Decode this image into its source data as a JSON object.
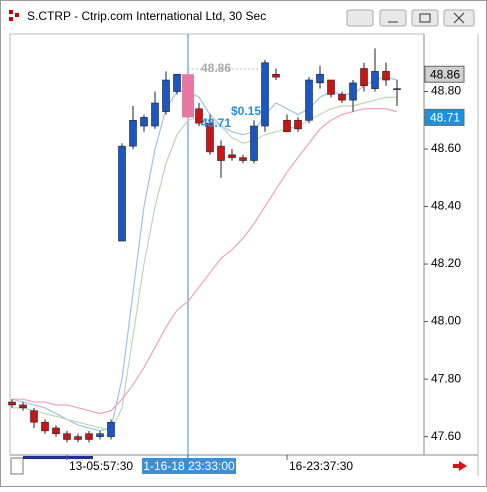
{
  "window_title": "S.CTRP - Ctrip.com International Ltd, 30 Sec",
  "chart_data": {
    "type": "candlestick",
    "categories": [
      null,
      null,
      null,
      null,
      null,
      "13-05:57:30",
      null,
      null,
      null,
      null,
      null,
      null,
      null,
      null,
      null,
      null,
      "1-16-18 23:33:00",
      null,
      null,
      null,
      null,
      null,
      null,
      null,
      null,
      "16-23:37:30",
      null,
      null,
      null,
      null,
      null,
      null,
      null,
      null,
      null,
      null
    ],
    "selected_category": 16,
    "open": [
      47.72,
      47.71,
      47.69,
      47.65,
      47.63,
      47.61,
      47.6,
      47.61,
      47.6,
      47.6,
      48.28,
      48.61,
      48.68,
      48.68,
      48.73,
      48.8,
      48.86,
      48.74,
      48.69,
      48.61,
      48.58,
      48.57,
      48.56,
      48.68,
      48.86,
      48.7,
      48.7,
      48.7,
      48.83,
      48.84,
      48.79,
      48.77,
      48.88,
      48.81,
      48.87,
      48.81
    ],
    "high": [
      47.73,
      47.72,
      47.7,
      47.66,
      47.64,
      47.62,
      47.61,
      47.62,
      47.62,
      47.66,
      48.62,
      48.75,
      48.72,
      48.8,
      48.87,
      48.86,
      48.86,
      48.76,
      48.72,
      48.63,
      48.6,
      48.58,
      48.7,
      48.91,
      48.88,
      48.72,
      48.71,
      48.85,
      48.89,
      48.84,
      48.8,
      48.84,
      48.9,
      48.95,
      48.9,
      48.84
    ],
    "low": [
      47.7,
      47.69,
      47.63,
      47.61,
      47.6,
      47.58,
      47.58,
      47.58,
      47.59,
      47.59,
      48.28,
      48.6,
      48.66,
      48.67,
      48.72,
      48.79,
      48.71,
      48.68,
      48.58,
      48.5,
      48.56,
      48.55,
      48.55,
      48.66,
      48.84,
      48.66,
      48.66,
      48.69,
      48.81,
      48.78,
      48.76,
      48.73,
      48.8,
      48.8,
      48.82,
      48.75
    ],
    "close": [
      47.71,
      47.7,
      47.65,
      47.62,
      47.61,
      47.59,
      47.59,
      47.59,
      47.61,
      47.65,
      48.61,
      48.7,
      48.71,
      48.76,
      48.84,
      48.86,
      48.71,
      48.69,
      48.59,
      48.56,
      48.57,
      48.56,
      48.68,
      48.9,
      48.85,
      48.66,
      48.67,
      48.84,
      48.86,
      48.79,
      48.77,
      48.83,
      48.82,
      48.87,
      48.84,
      48.81
    ],
    "up_color": "#1a56c4",
    "down_color": "#cc1414",
    "selected_color": "#e778a6",
    "lines": [
      {
        "color": "#9cc3e8",
        "values": [
          47.73,
          47.72,
          47.71,
          47.7,
          47.68,
          47.66,
          47.64,
          47.63,
          47.62,
          47.63,
          47.8,
          48.1,
          48.4,
          48.6,
          48.74,
          48.8,
          48.8,
          48.78,
          48.72,
          48.68,
          48.66,
          48.65,
          48.66,
          48.72,
          48.76,
          48.74,
          48.72,
          48.74,
          48.78,
          48.8,
          48.79,
          48.79,
          48.82,
          48.84,
          48.85,
          48.84
        ]
      },
      {
        "color": "#b9d8b4",
        "values": [
          47.7,
          47.7,
          47.69,
          47.68,
          47.67,
          47.66,
          47.65,
          47.64,
          47.63,
          47.62,
          47.7,
          47.95,
          48.2,
          48.4,
          48.55,
          48.65,
          48.7,
          48.71,
          48.7,
          48.68,
          48.64,
          48.62,
          48.63,
          48.65,
          48.66,
          48.67,
          48.68,
          48.7,
          48.72,
          48.74,
          48.75,
          48.75,
          48.76,
          48.77,
          48.78,
          48.78
        ]
      },
      {
        "color": "#f1a0bd",
        "values": [
          47.73,
          47.73,
          47.72,
          47.72,
          47.71,
          47.71,
          47.7,
          47.69,
          47.68,
          47.69,
          47.73,
          47.78,
          47.84,
          47.91,
          47.98,
          48.04,
          48.07,
          48.12,
          48.17,
          48.22,
          48.25,
          48.29,
          48.34,
          48.4,
          48.46,
          48.52,
          48.57,
          48.62,
          48.67,
          48.7,
          48.72,
          48.73,
          48.74,
          48.74,
          48.74,
          48.73
        ]
      }
    ],
    "ylim": [
      47.536,
      49.0
    ],
    "yticks": [
      {
        "value": 47.6,
        "label": "47.60"
      },
      {
        "value": 47.8,
        "label": "47.80"
      },
      {
        "value": 48.0,
        "label": "48.00"
      },
      {
        "value": 48.2,
        "label": "48.20"
      },
      {
        "value": 48.4,
        "label": "48.40"
      },
      {
        "value": 48.6,
        "label": "48.60"
      },
      {
        "value": 48.8,
        "label": "48.80"
      }
    ],
    "price_labels": [
      {
        "value": 48.86,
        "label": "48.86",
        "color": "#d0d0d0"
      },
      {
        "value": 48.71,
        "label": "48.71",
        "color": "#1e90e0"
      }
    ],
    "annotations": [
      "48.86",
      "$0.15",
      "48.71"
    ]
  }
}
